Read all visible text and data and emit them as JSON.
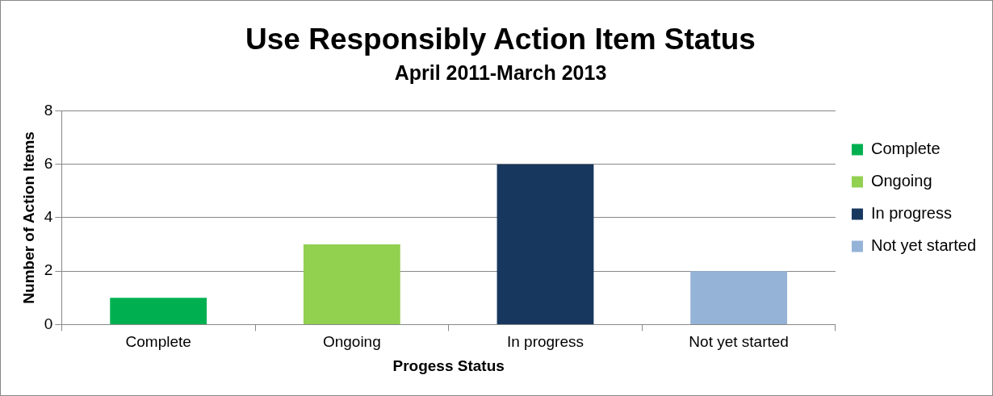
{
  "chart_data": {
    "type": "bar",
    "title": "Use Responsibly Action Item Status",
    "subtitle": "April 2011-March 2013",
    "xlabel": "Progess Status",
    "ylabel": "Number of Action Items",
    "categories": [
      "Complete",
      "Ongoing",
      "In progress",
      "Not yet started"
    ],
    "series": [
      {
        "name": "Complete",
        "color": "#00b050",
        "values": [
          1,
          null,
          null,
          null
        ]
      },
      {
        "name": "Ongoing",
        "color": "#92d050",
        "values": [
          null,
          3,
          null,
          null
        ]
      },
      {
        "name": "In progress",
        "color": "#17375e",
        "values": [
          null,
          null,
          6,
          null
        ]
      },
      {
        "name": "Not yet started",
        "color": "#95b3d7",
        "values": [
          null,
          null,
          null,
          2
        ]
      }
    ],
    "ylim": [
      0,
      8
    ],
    "yticks": [
      0,
      2,
      4,
      6,
      8
    ],
    "grid": "y",
    "legend": "right"
  }
}
